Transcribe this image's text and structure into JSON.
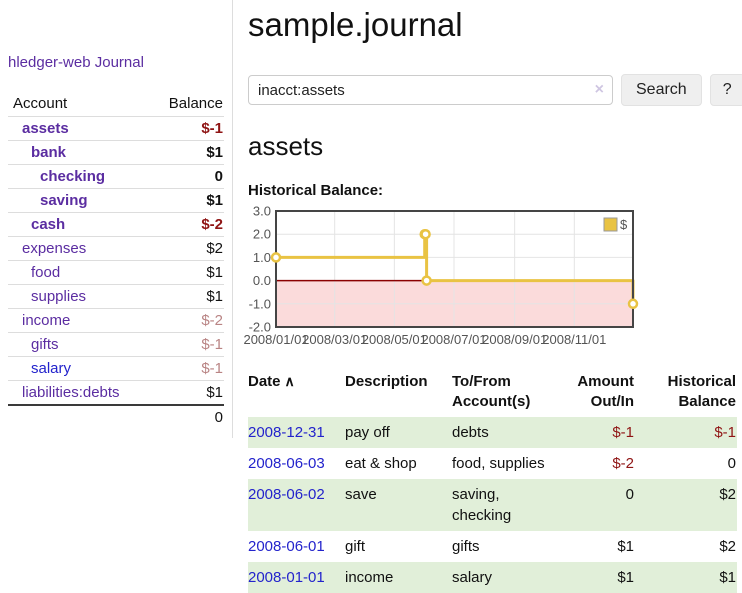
{
  "app": {
    "title": "hledger-web"
  },
  "colors": {
    "purple": "#5b2da1",
    "link_blue": "#2323cc",
    "negative": "#8f1414",
    "negative_soft": "#b98484",
    "stripe": "#e1efd9",
    "gold": "#e9c343",
    "pink": "#fbdbdb",
    "zero_line": "#8b0000",
    "grid": "#e4e4e4",
    "chart_border": "#454545",
    "axis_text": "#545454"
  },
  "icons": {
    "clear_search": "×",
    "sort_ascending": "∧"
  },
  "sidebar": {
    "journal_link": "Journal",
    "headers": {
      "account": "Account",
      "balance": "Balance"
    },
    "accounts": [
      {
        "name": "assets",
        "level": 1,
        "matched": true,
        "tone": "purple",
        "balance": "$-1",
        "balance_tone": "neg"
      },
      {
        "name": "bank",
        "level": 2,
        "matched": true,
        "tone": "purple",
        "balance": "$1",
        "balance_tone": "plain"
      },
      {
        "name": "checking",
        "level": 3,
        "matched": true,
        "tone": "purple",
        "balance": "0",
        "balance_tone": "plain"
      },
      {
        "name": "saving",
        "level": 3,
        "matched": true,
        "tone": "purple",
        "balance": "$1",
        "balance_tone": "plain"
      },
      {
        "name": "cash",
        "level": 2,
        "matched": true,
        "tone": "purple",
        "balance": "$-2",
        "balance_tone": "neg"
      },
      {
        "name": "expenses",
        "level": 1,
        "matched": false,
        "tone": "purple",
        "balance": "$2",
        "balance_tone": "plain"
      },
      {
        "name": "food",
        "level": 2,
        "matched": false,
        "tone": "purple",
        "balance": "$1",
        "balance_tone": "plain"
      },
      {
        "name": "supplies",
        "level": 2,
        "matched": false,
        "tone": "purple",
        "balance": "$1",
        "balance_tone": "plain"
      },
      {
        "name": "income",
        "level": 1,
        "matched": false,
        "tone": "purple",
        "balance": "$-2",
        "balance_tone": "soft"
      },
      {
        "name": "gifts",
        "level": 2,
        "matched": false,
        "tone": "purple",
        "balance": "$-1",
        "balance_tone": "soft"
      },
      {
        "name": "salary",
        "level": 2,
        "matched": false,
        "tone": "blue",
        "balance": "$-1",
        "balance_tone": "soft"
      },
      {
        "name": "liabilities:debts",
        "level": 1,
        "matched": false,
        "tone": "purple",
        "balance": "$1",
        "balance_tone": "plain"
      }
    ],
    "total": "0"
  },
  "main": {
    "title": "sample.journal",
    "search": {
      "value": "inacct:assets",
      "button_label": "Search",
      "help_label": "?"
    },
    "account_heading": "assets"
  },
  "chart_data": {
    "type": "line",
    "title": "Historical Balance:",
    "step": true,
    "xlim": [
      "2008-01-01",
      "2008-12-31"
    ],
    "ylim": [
      -2,
      3
    ],
    "x_ticks": [
      "2008/01/01",
      "2008/03/01",
      "2008/05/01",
      "2008/07/01",
      "2008/09/01",
      "2008/11/01"
    ],
    "y_ticks": [
      3.0,
      2.0,
      1.0,
      0.0,
      -1.0,
      -2.0
    ],
    "grid": true,
    "negative_region_shaded": true,
    "legend": {
      "label": "$",
      "position": "top-right"
    },
    "series": [
      {
        "name": "$",
        "points": [
          [
            "2008-01-01",
            1
          ],
          [
            "2008-06-01",
            2
          ],
          [
            "2008-06-02",
            2
          ],
          [
            "2008-06-03",
            0
          ],
          [
            "2008-12-31",
            -1
          ]
        ]
      }
    ]
  },
  "register": {
    "headers": {
      "date": "Date",
      "description": "Description",
      "accounts": "To/From Account(s)",
      "amount": "Amount Out/In",
      "balance": "Historical Balance"
    },
    "rows": [
      {
        "date": "2008-12-31",
        "description": "pay off",
        "accounts": "debts",
        "amount": "$-1",
        "amount_neg": true,
        "balance": "$-1",
        "balance_neg": true
      },
      {
        "date": "2008-06-03",
        "description": "eat & shop",
        "accounts": "food, supplies",
        "amount": "$-2",
        "amount_neg": true,
        "balance": "0",
        "balance_neg": false
      },
      {
        "date": "2008-06-02",
        "description": "save",
        "accounts": "saving, checking",
        "amount": "0",
        "amount_neg": false,
        "balance": "$2",
        "balance_neg": false
      },
      {
        "date": "2008-06-01",
        "description": "gift",
        "accounts": "gifts",
        "amount": "$1",
        "amount_neg": false,
        "balance": "$2",
        "balance_neg": false
      },
      {
        "date": "2008-01-01",
        "description": "income",
        "accounts": "salary",
        "amount": "$1",
        "amount_neg": false,
        "balance": "$1",
        "balance_neg": false
      }
    ]
  }
}
